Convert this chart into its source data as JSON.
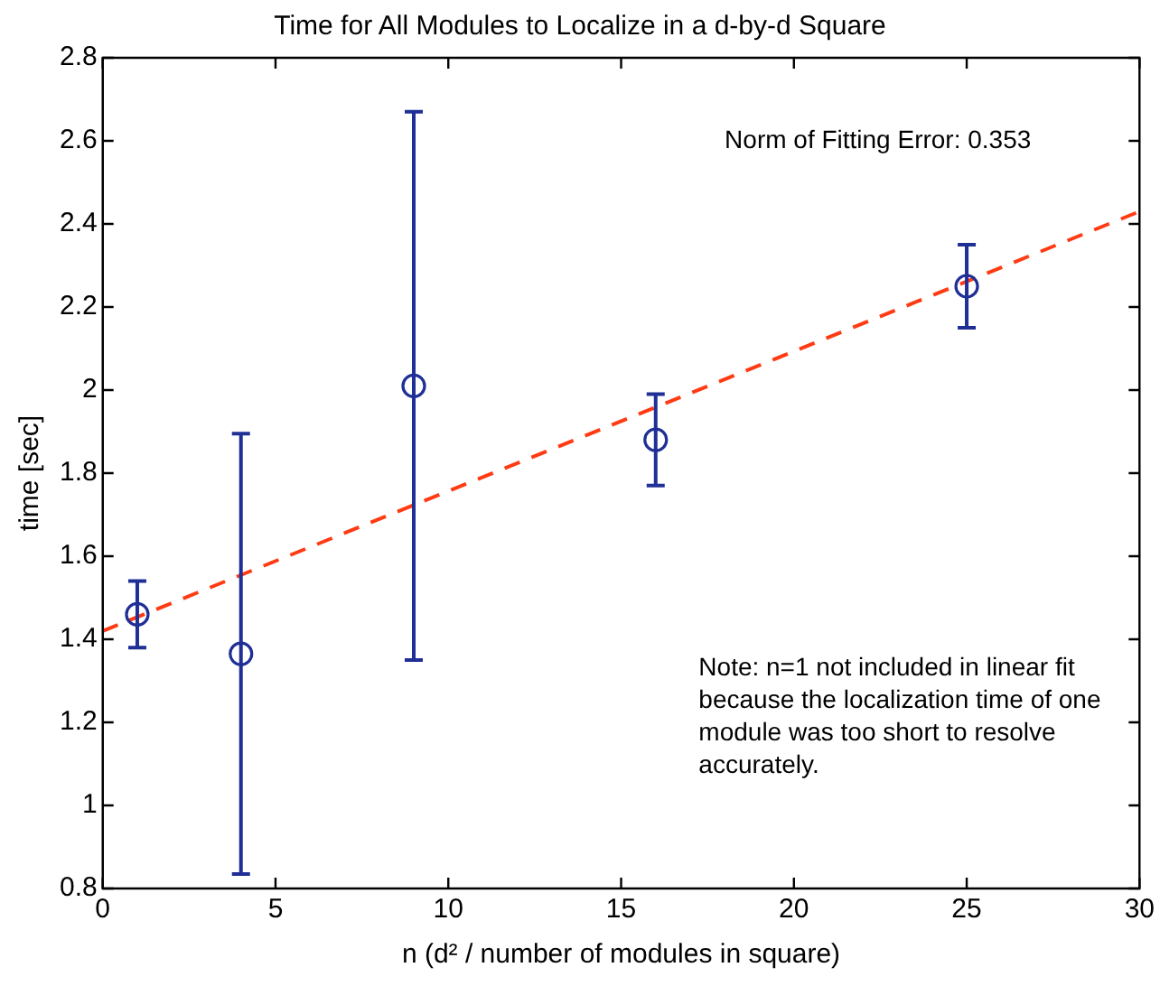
{
  "chart_data": {
    "type": "scatter",
    "title": "Time for All Modules to Localize in a d-by-d Square",
    "xlabel": "n (d² / number of modules in square)",
    "ylabel": "time [sec]",
    "xlim": [
      0,
      30
    ],
    "xticks": [
      0,
      5,
      10,
      15,
      20,
      25,
      30
    ],
    "ylim": [
      0.8,
      2.8
    ],
    "yticks": [
      0.8,
      1,
      1.2,
      1.4,
      1.6,
      1.8,
      2,
      2.2,
      2.4,
      2.6,
      2.8
    ],
    "grid": false,
    "legend": false,
    "series": [
      {
        "type": "scatter",
        "color": "#1f2f96",
        "marker": "circle",
        "x": [
          1,
          4,
          9,
          16,
          25
        ],
        "values": [
          1.46,
          1.365,
          2.01,
          1.88,
          2.25
        ],
        "errors": [
          0.08,
          0.53,
          0.66,
          0.11,
          0.1
        ]
      },
      {
        "type": "line",
        "color": "#ff3b14",
        "marker": "none",
        "line_style": "dashed",
        "x": [
          0,
          30
        ],
        "values": [
          1.42,
          2.43
        ]
      }
    ],
    "annotations": [
      "Norm of Fitting Error: 0.353",
      "Note: n=1 not included in linear fit because the localization time of one module was too short to resolve accurately."
    ]
  }
}
